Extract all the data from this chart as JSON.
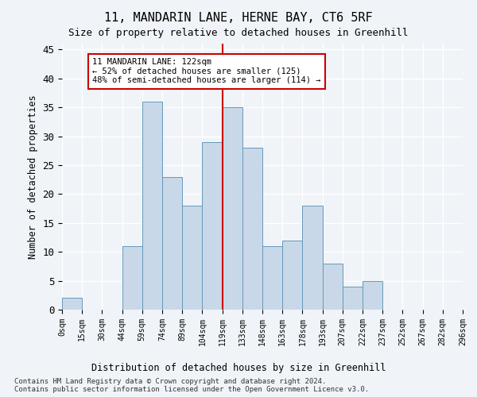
{
  "title": "11, MANDARIN LANE, HERNE BAY, CT6 5RF",
  "subtitle": "Size of property relative to detached houses in Greenhill",
  "xlabel_main": "Distribution of detached houses by size in Greenhill",
  "ylabel": "Number of detached properties",
  "bar_color": "#c8d8e8",
  "bar_edge_color": "#6699bb",
  "background_color": "#f0f4f8",
  "grid_color": "#ffffff",
  "bins": [
    "0sqm",
    "15sqm",
    "30sqm",
    "44sqm",
    "59sqm",
    "74sqm",
    "89sqm",
    "104sqm",
    "119sqm",
    "133sqm",
    "148sqm",
    "163sqm",
    "178sqm",
    "193sqm",
    "207sqm",
    "222sqm",
    "237sqm",
    "252sqm",
    "267sqm",
    "282sqm",
    "296sqm"
  ],
  "values": [
    2,
    0,
    0,
    11,
    36,
    23,
    18,
    29,
    35,
    28,
    11,
    12,
    18,
    8,
    4,
    5,
    0,
    0,
    0,
    0
  ],
  "vline_x": 8,
  "vline_color": "#cc0000",
  "ylim": [
    0,
    46
  ],
  "yticks": [
    0,
    5,
    10,
    15,
    20,
    25,
    30,
    35,
    40,
    45
  ],
  "annotation_text": "11 MANDARIN LANE: 122sqm\n← 52% of detached houses are smaller (125)\n48% of semi-detached houses are larger (114) →",
  "annotation_box_color": "#ffffff",
  "annotation_box_edge": "#cc0000",
  "footer1": "Contains HM Land Registry data © Crown copyright and database right 2024.",
  "footer2": "Contains public sector information licensed under the Open Government Licence v3.0."
}
